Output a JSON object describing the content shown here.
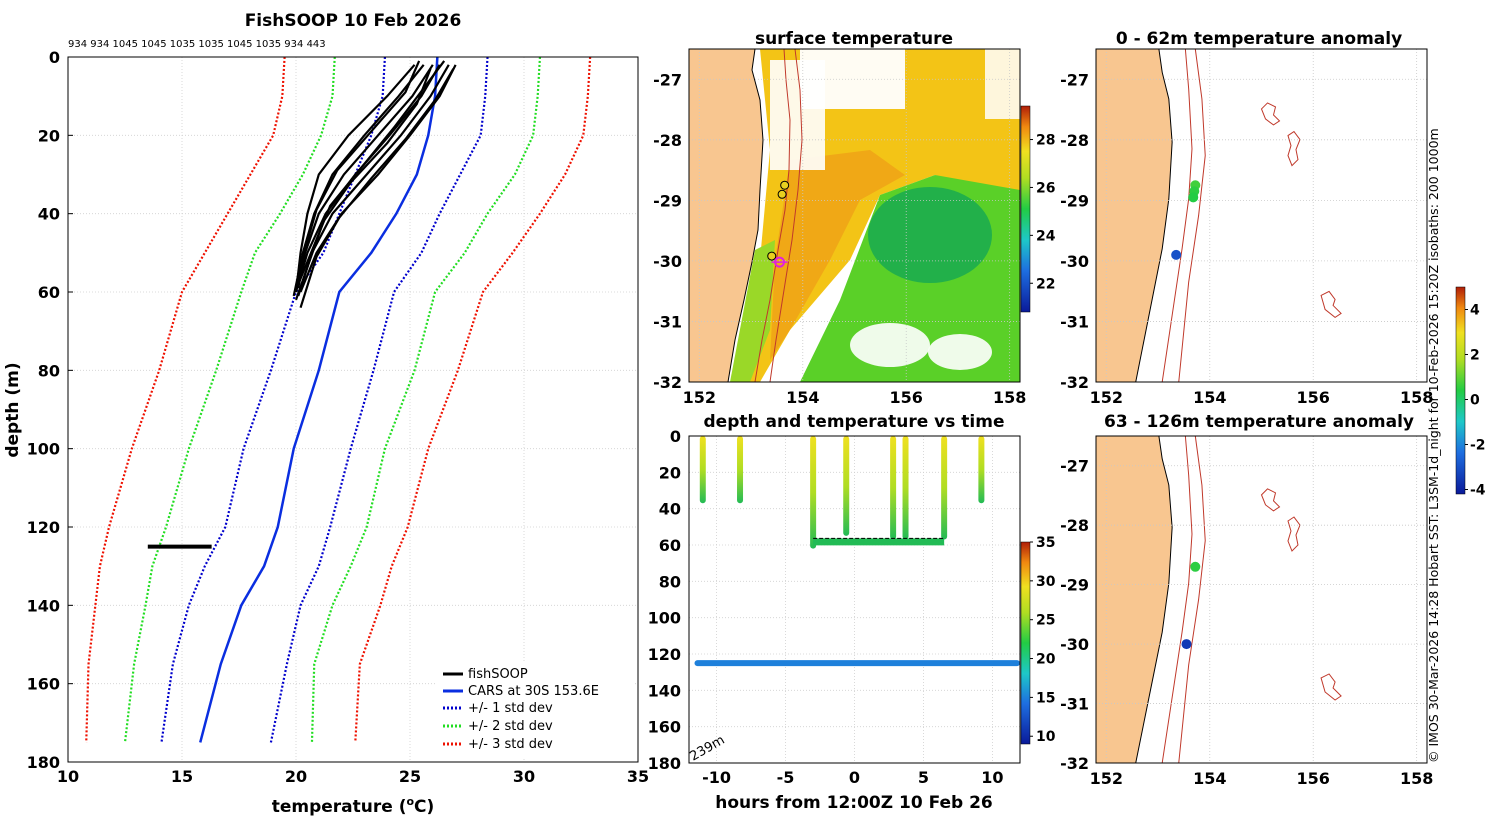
{
  "colors": {
    "fishsoop": "#000000",
    "cars": "#0a2ee0",
    "std1": "#0000cc",
    "std2": "#22dd22",
    "std3": "#ee1100",
    "land": "#f8c690",
    "isobath": "#c0392b"
  },
  "chart_data": [
    {
      "id": "profile",
      "type": "line",
      "title": "FishSOOP 10 Feb 2026",
      "top_label": "934 934 1045 1045 1035 1035 1045 1035 934 443",
      "xlabel": "temperature (°C)",
      "ylabel": "depth (m)",
      "xlim": [
        10,
        35
      ],
      "ylim": [
        180,
        0
      ],
      "xticks": [
        "10",
        "15",
        "20",
        "25",
        "30",
        "35"
      ],
      "yticks": [
        "0",
        "20",
        "40",
        "60",
        "80",
        "100",
        "120",
        "140",
        "160",
        "180"
      ],
      "legend_position": "bottom-right",
      "legend": [
        "fishSOOP",
        "CARS at 30S 153.6E",
        "+/- 1 std dev",
        "+/- 2 std dev",
        "+/- 3 std dev"
      ],
      "series": [
        {
          "name": "CARS at 30S 153.6E",
          "style": "solid",
          "x": [
            26.2,
            26.1,
            25.8,
            25.3,
            24.4,
            23.3,
            21.9,
            21.0,
            19.9,
            19.2,
            18.6,
            17.6,
            16.7,
            15.8
          ],
          "y": [
            0,
            10,
            20,
            30,
            40,
            50,
            60,
            80,
            100,
            120,
            130,
            140,
            155,
            175
          ]
        },
        {
          "name": "+/- 1 std dev",
          "style": "dotted",
          "x": [
            23.9,
            23.8,
            23.3,
            22.6,
            21.9,
            21.2,
            20.0,
            18.9,
            17.7,
            16.9,
            16.0,
            15.3,
            14.6,
            14.1
          ],
          "y": [
            0,
            10,
            20,
            30,
            40,
            50,
            60,
            80,
            100,
            120,
            130,
            140,
            155,
            175
          ]
        },
        {
          "name": "+/- 1 std dev",
          "style": "dotted",
          "x": [
            28.4,
            28.3,
            28.1,
            27.2,
            26.3,
            25.5,
            24.3,
            23.4,
            22.4,
            21.5,
            21.0,
            20.2,
            19.6,
            18.9
          ],
          "y": [
            0,
            10,
            20,
            30,
            40,
            50,
            60,
            80,
            100,
            120,
            130,
            140,
            155,
            175
          ]
        },
        {
          "name": "+/- 2 std dev",
          "style": "dotted",
          "x": [
            21.7,
            21.6,
            21.1,
            20.3,
            19.3,
            18.2,
            17.6,
            16.5,
            15.3,
            14.3,
            13.7,
            13.4,
            12.9,
            12.5
          ],
          "y": [
            0,
            10,
            20,
            30,
            40,
            50,
            60,
            80,
            100,
            120,
            130,
            140,
            155,
            175
          ]
        },
        {
          "name": "+/- 2 std dev",
          "style": "dotted",
          "x": [
            30.7,
            30.6,
            30.4,
            29.6,
            28.4,
            27.4,
            26.1,
            25.2,
            23.9,
            23.1,
            22.4,
            21.6,
            20.8,
            20.7
          ],
          "y": [
            0,
            10,
            20,
            30,
            40,
            50,
            60,
            80,
            100,
            120,
            130,
            140,
            155,
            175
          ]
        },
        {
          "name": "+/- 3 std dev",
          "style": "dotted",
          "x": [
            19.5,
            19.4,
            19.0,
            18.0,
            17.0,
            16.0,
            15.0,
            14.0,
            12.8,
            11.8,
            11.4,
            11.2,
            10.9,
            10.8
          ],
          "y": [
            0,
            10,
            20,
            30,
            40,
            50,
            60,
            80,
            100,
            120,
            130,
            140,
            155,
            175
          ]
        },
        {
          "name": "+/- 3 std dev",
          "style": "dotted",
          "x": [
            32.9,
            32.8,
            32.6,
            31.8,
            30.7,
            29.5,
            28.2,
            27.1,
            25.8,
            24.9,
            24.2,
            23.7,
            22.8,
            22.6
          ],
          "y": [
            0,
            10,
            20,
            30,
            40,
            50,
            60,
            80,
            100,
            120,
            130,
            140,
            155,
            175
          ]
        }
      ],
      "fishsoop_profiles": [
        {
          "x": [
            25.2,
            24.0,
            22.3,
            21.0,
            20.5,
            20.2,
            20.0
          ],
          "y": [
            2,
            10,
            20,
            30,
            40,
            50,
            60
          ]
        },
        {
          "x": [
            25.6,
            24.5,
            23.0,
            21.6,
            20.8,
            20.3,
            19.9
          ],
          "y": [
            2,
            10,
            20,
            30,
            40,
            50,
            61
          ]
        },
        {
          "x": [
            26.0,
            25.1,
            23.6,
            22.1,
            21.0,
            20.4,
            20.1
          ],
          "y": [
            2,
            10,
            20,
            30,
            40,
            50,
            59
          ]
        },
        {
          "x": [
            26.3,
            25.5,
            24.1,
            22.6,
            21.3,
            20.5,
            20.0
          ],
          "y": [
            2,
            10,
            20,
            30,
            40,
            50,
            60
          ]
        },
        {
          "x": [
            26.7,
            25.9,
            24.6,
            23.1,
            21.6,
            20.7,
            20.1
          ],
          "y": [
            2,
            10,
            20,
            30,
            40,
            50,
            61
          ]
        },
        {
          "x": [
            27.0,
            26.3,
            25.0,
            23.6,
            22.0,
            20.9,
            20.2
          ],
          "y": [
            2,
            10,
            20,
            30,
            40,
            50,
            60
          ]
        },
        {
          "x": [
            25.9,
            25.3,
            24.0,
            22.4,
            21.2,
            20.6,
            20.0
          ],
          "y": [
            3,
            12,
            22,
            32,
            42,
            52,
            62
          ]
        },
        {
          "x": [
            26.5,
            25.6,
            24.3,
            22.9,
            21.5,
            20.8,
            20.1
          ],
          "y": [
            1,
            8,
            18,
            28,
            38,
            48,
            58
          ]
        },
        {
          "x": [
            26.9,
            26.1,
            24.8,
            23.3,
            21.9,
            20.9,
            20.2
          ],
          "y": [
            3,
            11,
            21,
            31,
            41,
            51,
            64
          ]
        },
        {
          "x": [
            25.4,
            24.8,
            23.3,
            21.8,
            20.9,
            20.4,
            20.0
          ],
          "y": [
            1,
            9,
            19,
            29,
            39,
            49,
            59
          ]
        }
      ],
      "fishsoop_bottom": {
        "x1": 13.5,
        "x2": 16.3,
        "depth": 125
      }
    },
    {
      "id": "sst",
      "type": "heatmap",
      "title": "surface temperature",
      "xlim": [
        151.8,
        158.2
      ],
      "ylim": [
        -32,
        -26.5
      ],
      "xticks": [
        "152",
        "154",
        "156",
        "158"
      ],
      "yticks": [
        "-27",
        "-28",
        "-29",
        "-30",
        "-31",
        "-32"
      ],
      "colorbar": {
        "min": 20.8,
        "max": 29.4,
        "ticks": [
          "22",
          "24",
          "26",
          "28"
        ]
      },
      "stations": [
        {
          "lon": 153.65,
          "lat": -28.75
        },
        {
          "lon": 153.6,
          "lat": -28.9
        },
        {
          "lon": 153.4,
          "lat": -29.92
        }
      ],
      "current_position": {
        "lon": 153.55,
        "lat": -30.02
      }
    },
    {
      "id": "anomaly_shallow",
      "type": "scatter",
      "title": "0 - 62m temperature anomaly",
      "xlim": [
        151.8,
        158.2
      ],
      "ylim": [
        -32,
        -26.5
      ],
      "xticks": [
        "152",
        "154",
        "156",
        "158"
      ],
      "yticks": [
        "-27",
        "-28",
        "-29",
        "-30",
        "-31",
        "-32"
      ],
      "points": [
        {
          "lon": 153.72,
          "lat": -28.75,
          "anomaly": 0.7
        },
        {
          "lon": 153.7,
          "lat": -28.85,
          "anomaly": 0.5
        },
        {
          "lon": 153.68,
          "lat": -28.95,
          "anomaly": 0.4
        },
        {
          "lon": 153.35,
          "lat": -29.9,
          "anomaly": -3.0
        }
      ]
    },
    {
      "id": "anomaly_deep",
      "type": "scatter",
      "title": "63 - 126m temperature anomaly",
      "xlim": [
        151.8,
        158.2
      ],
      "ylim": [
        -32,
        -26.5
      ],
      "xticks": [
        "152",
        "154",
        "156",
        "158"
      ],
      "yticks": [
        "-27",
        "-28",
        "-29",
        "-30",
        "-31",
        "-32"
      ],
      "points": [
        {
          "lon": 153.72,
          "lat": -28.7,
          "anomaly": 0.5
        },
        {
          "lon": 153.55,
          "lat": -30.0,
          "anomaly": -3.5
        }
      ]
    },
    {
      "id": "depth_time",
      "type": "scatter",
      "title": "depth and temperature vs time",
      "xlabel": "hours from 12:00Z 10 Feb 26",
      "xlim": [
        -12,
        12
      ],
      "ylim": [
        180,
        0
      ],
      "xticks": [
        "-10",
        "-5",
        "0",
        "5",
        "10"
      ],
      "yticks": [
        "0",
        "20",
        "40",
        "60",
        "80",
        "100",
        "120",
        "140",
        "160",
        "180"
      ],
      "bottom_depth_label": "239m",
      "colorbar": {
        "min": 9,
        "max": 35,
        "ticks": [
          "10",
          "15",
          "20",
          "25",
          "30",
          "35"
        ]
      },
      "casts": [
        {
          "t": -11.0,
          "top": 0,
          "bottom": 37
        },
        {
          "t": -8.3,
          "top": 0,
          "bottom": 37
        },
        {
          "t": -3.0,
          "top": 0,
          "bottom": 62
        },
        {
          "t": -0.6,
          "top": 0,
          "bottom": 55
        },
        {
          "t": 2.8,
          "top": 0,
          "bottom": 57
        },
        {
          "t": 3.7,
          "top": 0,
          "bottom": 57
        },
        {
          "t": 6.5,
          "top": 0,
          "bottom": 57
        },
        {
          "t": 9.2,
          "top": 0,
          "bottom": 37
        }
      ],
      "bottom_tows": [
        {
          "t_start": -3.0,
          "t_end": 6.5,
          "depth": 58
        }
      ],
      "long_line": {
        "t_start": -11.6,
        "t_end": 12,
        "depth": 125,
        "temperature": 15
      }
    }
  ],
  "anomaly_colorbar": {
    "min": -4.2,
    "max": 5.0,
    "ticks": [
      "-4",
      "-2",
      "0",
      "2",
      "4"
    ]
  },
  "footer": "© IMOS 30-Mar-2026 14:28 Hobart SST: L3SM-1d_night for 10-Feb-2026 15:20Z isobaths: 200  1000m"
}
